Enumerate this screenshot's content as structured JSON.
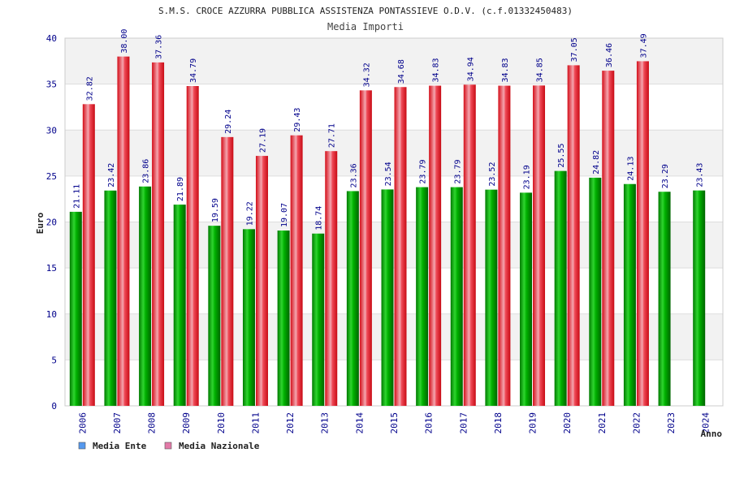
{
  "chart_data": {
    "type": "bar",
    "title": "S.M.S. CROCE AZZURRA PUBBLICA ASSISTENZA PONTASSIEVE O.D.V. (c.f.01332450483)",
    "subtitle": "Media Importi",
    "xlabel": "Anno",
    "ylabel": "Euro",
    "ylim": [
      0,
      40
    ],
    "yticks": [
      0,
      5,
      10,
      15,
      20,
      25,
      30,
      35,
      40
    ],
    "categories": [
      "2006",
      "2007",
      "2008",
      "2009",
      "2010",
      "2011",
      "2012",
      "2013",
      "2014",
      "2015",
      "2016",
      "2017",
      "2018",
      "2019",
      "2020",
      "2021",
      "2022",
      "2023",
      "2024"
    ],
    "series": [
      {
        "name": "Media Ente",
        "values": [
          21.11,
          23.42,
          23.86,
          21.89,
          19.59,
          19.22,
          19.07,
          18.74,
          23.36,
          23.54,
          23.79,
          23.79,
          23.52,
          23.19,
          25.55,
          24.82,
          24.13,
          23.29,
          23.43
        ],
        "labels": [
          "21.11",
          "23.42",
          "23.86",
          "21.89",
          "19.59",
          "19.22",
          "19.07",
          "18.74",
          "23.36",
          "23.54",
          "23.79",
          "23.79",
          "23.52",
          "23.19",
          "25.55",
          "24.82",
          "24.13",
          "23.29",
          "23.43"
        ],
        "color": "#00a000",
        "legend_color": "#5599ee"
      },
      {
        "name": "Media Nazionale",
        "values": [
          32.82,
          38.0,
          37.36,
          34.79,
          29.24,
          27.19,
          29.43,
          27.71,
          34.32,
          34.68,
          34.83,
          34.94,
          34.83,
          34.85,
          37.05,
          36.46,
          37.49,
          null,
          null
        ],
        "labels": [
          "32.82",
          "38.00",
          "37.36",
          "34.79",
          "29.24",
          "27.19",
          "29.43",
          "27.71",
          "34.32",
          "34.68",
          "34.83",
          "34.94",
          "34.83",
          "34.85",
          "37.05",
          "36.46",
          "37.49",
          null,
          null
        ],
        "color": "#ee1c24",
        "legend_color": "#e37aa8"
      }
    ],
    "grid": true,
    "legend_position": "bottom-left"
  }
}
